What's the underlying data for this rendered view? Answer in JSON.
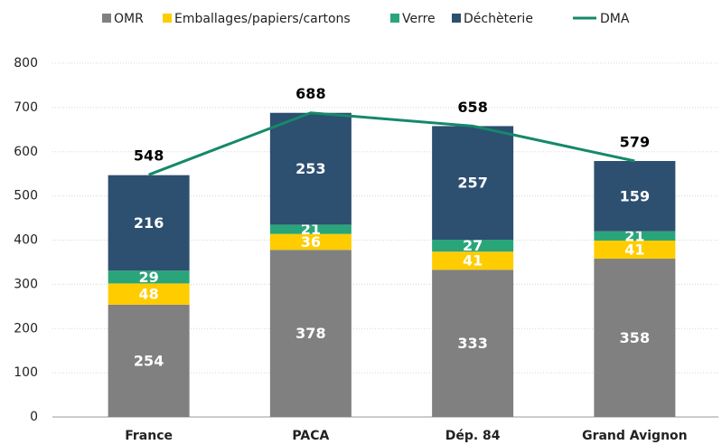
{
  "chart_data": {
    "type": "bar",
    "categories": [
      "France",
      "PACA",
      "Dép. 84",
      "Grand Avignon"
    ],
    "series": [
      {
        "name": "OMR",
        "color": "#808080",
        "values": [
          254,
          378,
          333,
          358
        ]
      },
      {
        "name": "Emballages/papiers/cartons",
        "color": "#ffcc00",
        "values": [
          48,
          36,
          41,
          41
        ]
      },
      {
        "name": "Verre",
        "color": "#2aa57a",
        "values": [
          29,
          21,
          27,
          21
        ]
      },
      {
        "name": "Déchèterie",
        "color": "#2d4f70",
        "values": [
          216,
          253,
          257,
          159
        ]
      },
      {
        "name": "DMA",
        "type": "line",
        "color": "#15896a",
        "values": [
          548,
          688,
          658,
          579
        ]
      }
    ],
    "stacked": true,
    "ylim": [
      0,
      800
    ],
    "yticks": [
      0,
      100,
      200,
      300,
      400,
      500,
      600,
      700,
      800
    ],
    "grid": true,
    "legend": "top"
  }
}
